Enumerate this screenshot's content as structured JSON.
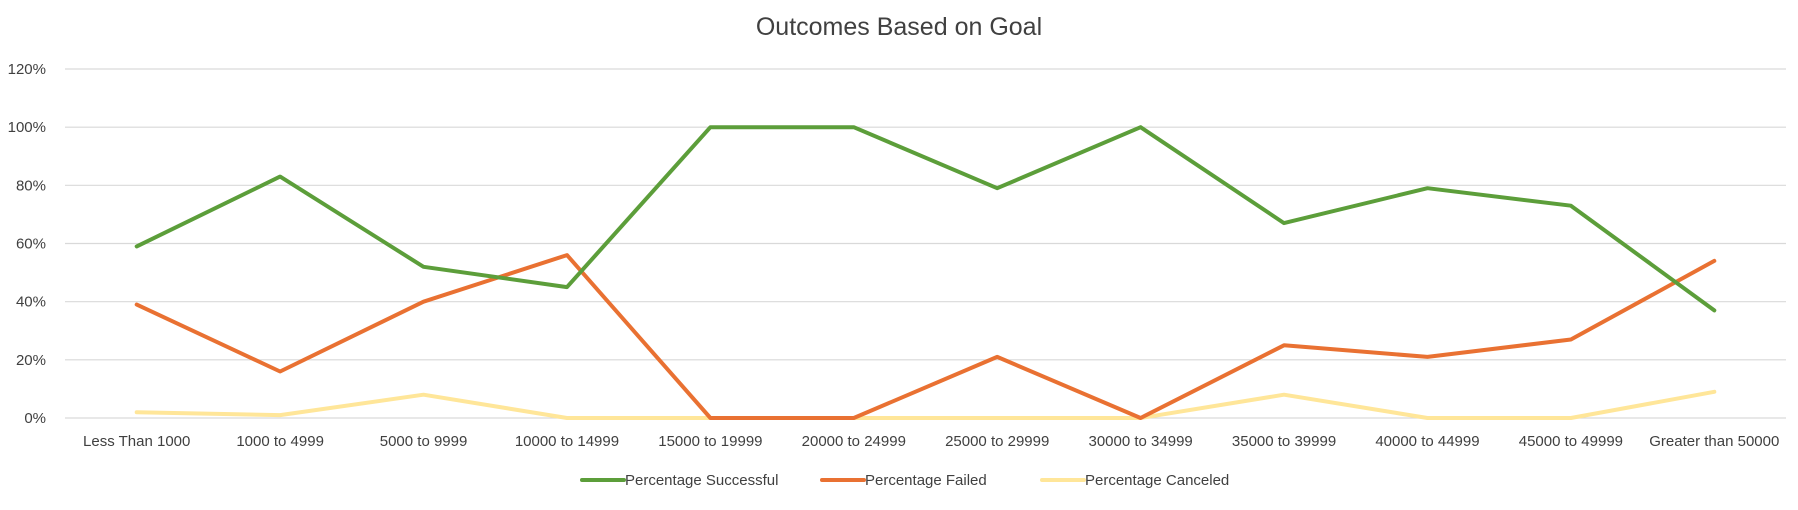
{
  "chart_data": {
    "type": "line",
    "title": "Outcomes Based on Goal",
    "xlabel": "",
    "ylabel": "",
    "categories": [
      "Less Than 1000",
      "1000 to 4999",
      "5000 to 9999",
      "10000 to 14999",
      "15000 to 19999",
      "20000 to 24999",
      "25000 to 29999",
      "30000 to 34999",
      "35000 to 39999",
      "40000 to 44999",
      "45000 to 49999",
      "Greater than 50000"
    ],
    "y_ticks": [
      "0%",
      "20%",
      "40%",
      "60%",
      "80%",
      "100%",
      "120%"
    ],
    "ylim": [
      0,
      120
    ],
    "grid": true,
    "legend_position": "bottom",
    "series": [
      {
        "name": "Percentage Successful",
        "color": "#5c9e3a",
        "values": [
          59,
          83,
          52,
          45,
          100,
          100,
          79,
          100,
          67,
          79,
          73,
          37
        ]
      },
      {
        "name": "Percentage Failed",
        "color": "#e97132",
        "values": [
          39,
          16,
          40,
          56,
          0,
          0,
          21,
          0,
          25,
          21,
          27,
          54
        ]
      },
      {
        "name": "Percentage Canceled",
        "color": "#ffe699",
        "values": [
          2,
          1,
          8,
          0,
          0,
          0,
          0,
          0,
          8,
          0,
          0,
          9
        ]
      }
    ]
  }
}
